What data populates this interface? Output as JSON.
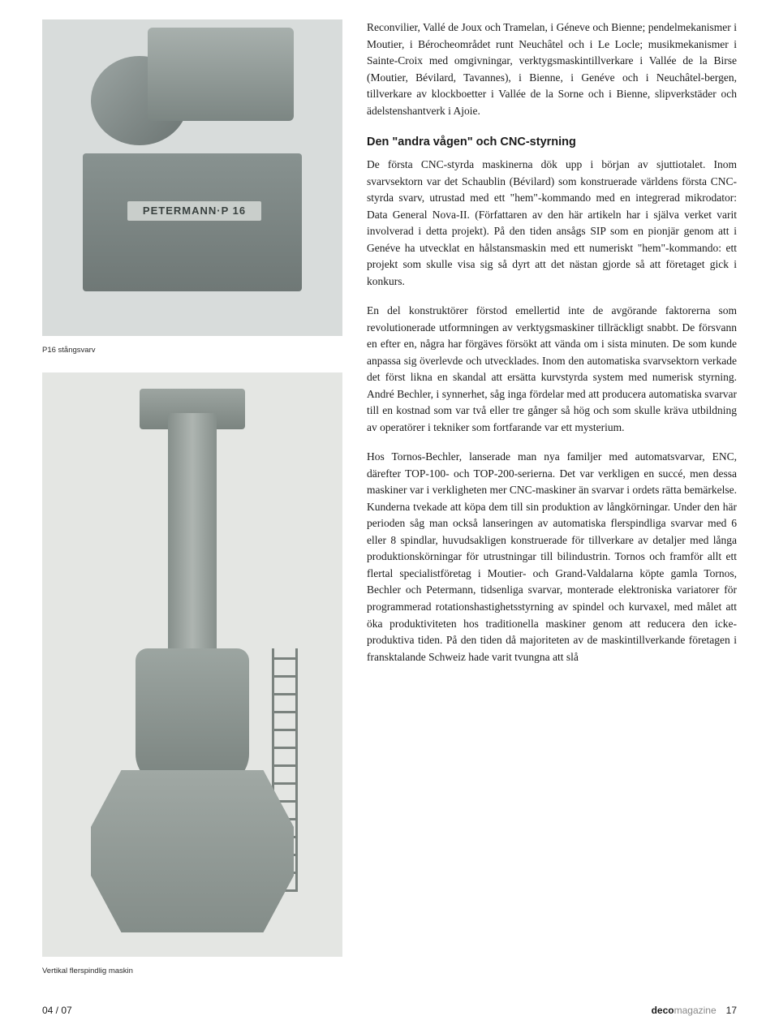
{
  "left": {
    "image1_label": "PETERMANN·P 16",
    "caption1": "P16 stångsvarv",
    "caption2": "Vertikal flerspindlig maskin"
  },
  "article": {
    "intro_para": "Reconvilier, Vallé de Joux och Tramelan, i Géneve och Bienne; pendelmekanismer i Moutier, i Bérocheområdet runt Neuchâtel och i Le Locle; musikmekanismer i Sainte-Croix med omgivningar, verktygsmaskintillverkare i Vallée de la Birse (Moutier, Bévilard, Tavannes), i Bienne, i Genéve och i Neuchâtel-bergen, tillverkare av klockboetter i Vallée de la Sorne och i Bienne, slipverkstäder och ädelstenshantverk i Ajoie.",
    "section_title": "Den \"andra vågen\" och CNC-styrning",
    "para1": "De första CNC-styrda maskinerna dök upp i början av sjuttiotalet. Inom svarvsektorn var det Schaublin (Bévilard) som konstruerade världens första CNC-styrda svarv, utrustad med ett \"hem\"-kommando med en integrerad mikrodator: Data General Nova-II. (Författaren av den här artikeln har i själva verket varit involverad i detta projekt). På den tiden ansågs SIP som en pionjär genom att i Genéve ha utvecklat en hålstansmaskin med ett numeriskt \"hem\"-kommando: ett projekt som skulle visa sig så dyrt att det nästan gjorde så att företaget gick i konkurs.",
    "para2": "En del konstruktörer förstod emellertid inte de avgörande faktorerna som revolutionerade utformningen av verktygsmaskiner tillräckligt snabbt. De försvann en efter en, några har förgäves försökt att vända om i sista minuten. De som kunde anpassa sig överlevde och utvecklades. Inom den automatiska svarvsektorn verkade det först likna en skandal att ersätta kurvstyrda system med numerisk styrning. André Bechler, i synnerhet, såg inga fördelar med att producera automatiska svarvar till en kostnad som var två eller tre gånger så hög och som skulle kräva utbildning av operatörer i tekniker som fortfarande var ett mysterium.",
    "para3": "Hos Tornos-Bechler, lanserade man nya familjer med automatsvarvar, ENC, därefter TOP-100- och TOP-200-serierna. Det var verkligen en succé, men dessa maskiner var i verkligheten mer CNC-maskiner än svarvar i ordets rätta bemärkelse. Kunderna tvekade att köpa dem till sin produktion av långkörningar. Under den här perioden såg man också lanseringen av automatiska flerspindliga svarvar med 6 eller 8 spindlar, huvudsakligen konstruerade för tillverkare av detaljer med långa produktionskörningar för utrustningar till bilindustrin. Tornos och framför allt ett flertal specialistföretag i Moutier- och Grand-Valdalarna köpte gamla Tornos, Bechler och Petermann, tidsenliga svarvar, monterade elektroniska variatorer för programmerad rotationshastighetsstyrning av spindel och kurvaxel, med målet att öka produktiviteten hos traditionella maskiner genom att reducera den icke-produktiva tiden. På den tiden då majoriteten av de maskintillverkande företagen i fransktalande Schweiz hade varit tvungna att slå"
  },
  "footer": {
    "left": "04 / 07",
    "mag_bold": "deco",
    "mag_light": "magazine",
    "page_num": "17"
  },
  "colors": {
    "text": "#1a1a1a",
    "bg": "#ffffff",
    "caption": "#2a2a2a",
    "img_bg1": "#d8dcdb",
    "img_bg2": "#e4e6e3"
  }
}
